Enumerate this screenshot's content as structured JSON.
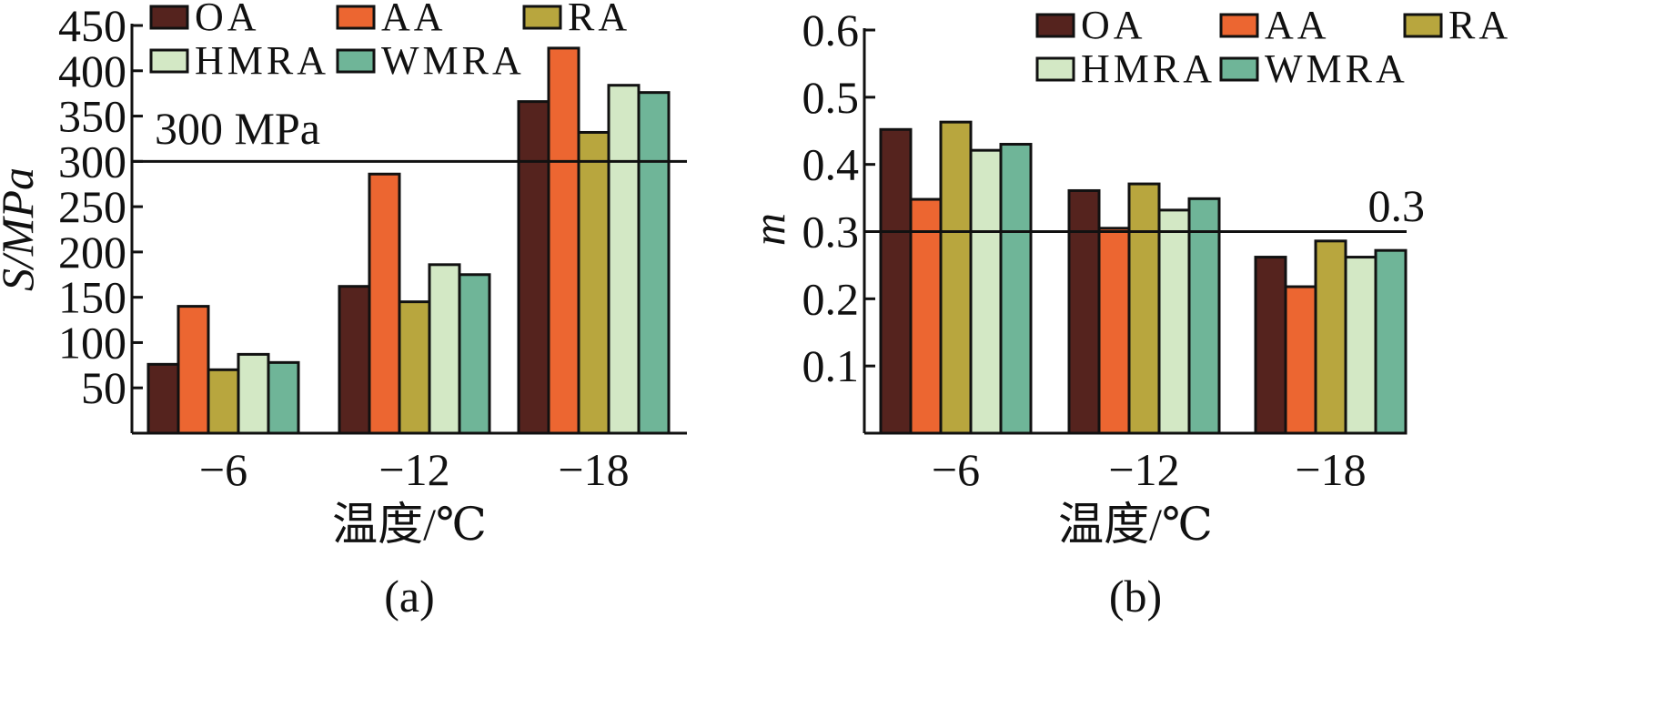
{
  "chart_data": [
    {
      "type": "bar",
      "panel_label": "(a)",
      "categories": [
        "−6",
        "−12",
        "−18"
      ],
      "xlabel": "温度/℃",
      "ylabel": "S/MPa",
      "ylim": [
        0,
        450
      ],
      "yticks": [
        50,
        100,
        150,
        200,
        250,
        300,
        350,
        400,
        450
      ],
      "legend_position": "top-left",
      "grid": false,
      "series": [
        {
          "name": "OA",
          "color": "#55231e",
          "values": [
            76,
            162,
            366
          ]
        },
        {
          "name": "AA",
          "color": "#ec6631",
          "values": [
            140,
            286,
            425
          ]
        },
        {
          "name": "RA",
          "color": "#b8a63e",
          "values": [
            70,
            145,
            332
          ]
        },
        {
          "name": "HMRA",
          "color": "#d3e8c5",
          "values": [
            87,
            186,
            384
          ]
        },
        {
          "name": "WMRA",
          "color": "#6fb598",
          "values": [
            78,
            175,
            376
          ]
        }
      ],
      "reference_line": {
        "value": 300,
        "label": "300 MPa"
      }
    },
    {
      "type": "bar",
      "panel_label": "(b)",
      "categories": [
        "−6",
        "−12",
        "−18"
      ],
      "xlabel": "温度/℃",
      "ylabel": "m",
      "ylim": [
        0,
        0.6
      ],
      "yticks": [
        0.1,
        0.2,
        0.3,
        0.4,
        0.5,
        0.6
      ],
      "legend_position": "top-right",
      "grid": false,
      "series": [
        {
          "name": "OA",
          "color": "#55231e",
          "values": [
            0.452,
            0.361,
            0.262
          ]
        },
        {
          "name": "AA",
          "color": "#ec6631",
          "values": [
            0.348,
            0.305,
            0.218
          ]
        },
        {
          "name": "RA",
          "color": "#b8a63e",
          "values": [
            0.463,
            0.371,
            0.286
          ]
        },
        {
          "name": "HMRA",
          "color": "#d3e8c5",
          "values": [
            0.421,
            0.332,
            0.262
          ]
        },
        {
          "name": "WMRA",
          "color": "#6fb598",
          "values": [
            0.43,
            0.349,
            0.272
          ]
        }
      ],
      "reference_line": {
        "value": 0.3,
        "label": "0.3"
      }
    }
  ]
}
